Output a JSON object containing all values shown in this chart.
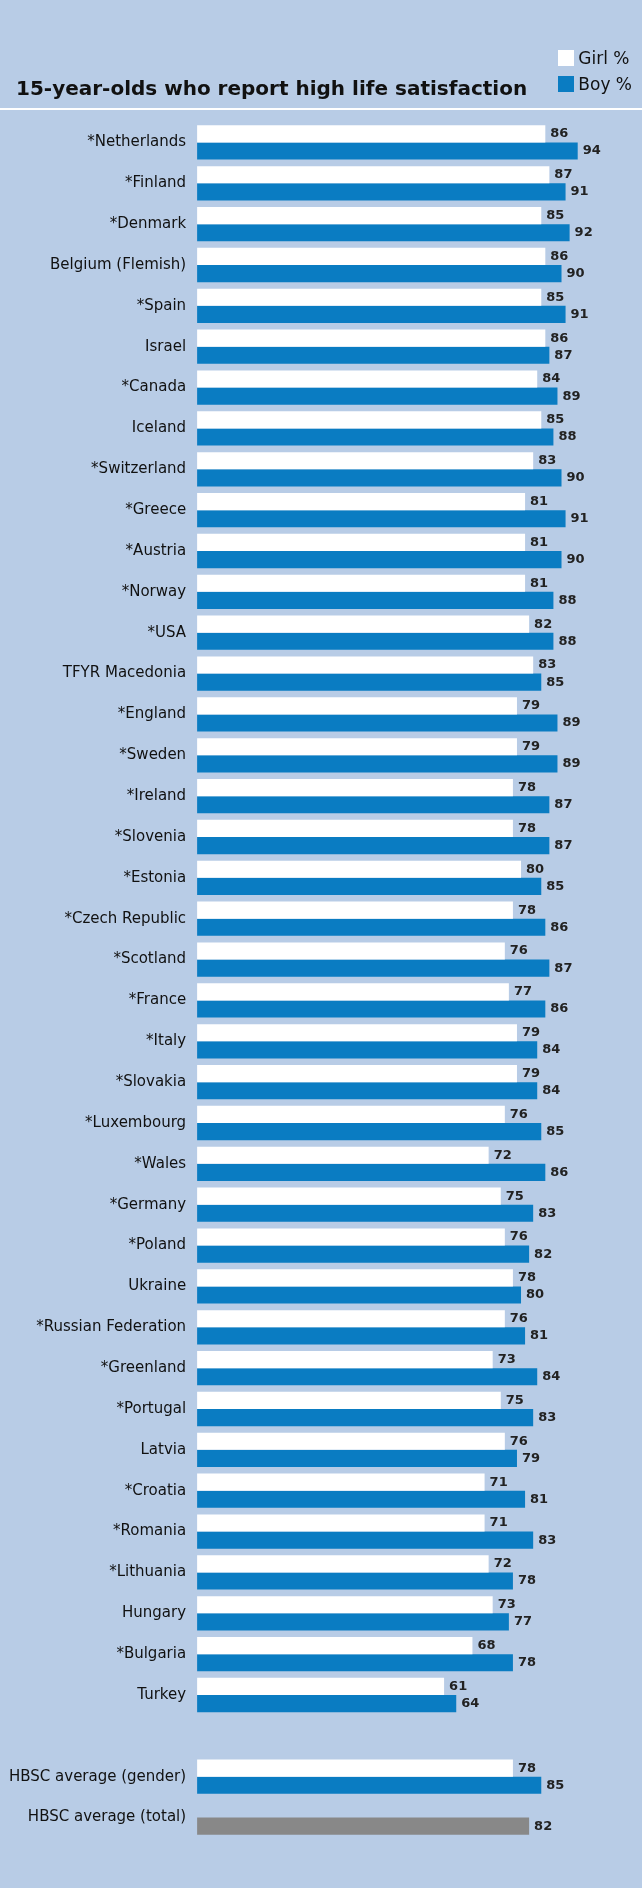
{
  "chart_data": {
    "type": "bar",
    "orientation": "horizontal",
    "title": "15-year-olds who report high life satisfaction",
    "legend": "top right",
    "data_labels": true,
    "categories": [
      "*Netherlands",
      "*Finland",
      "*Denmark",
      "Belgium (Flemish)",
      "*Spain",
      "Israel",
      "*Canada",
      "Iceland",
      "*Switzerland",
      "*Greece",
      "*Austria",
      "*Norway",
      "*USA",
      "TFYR Macedonia",
      "*England",
      "*Sweden",
      "*Ireland",
      "*Slovenia",
      "*Estonia",
      "*Czech Republic",
      "*Scotland",
      "*France",
      "*Italy",
      "*Slovakia",
      "*Luxembourg",
      "*Wales",
      "*Germany",
      "*Poland",
      "Ukraine",
      "*Russian Federation",
      "*Greenland",
      "*Portugal",
      "Latvia",
      "*Croatia",
      "*Romania",
      "*Lithuania",
      "Hungary",
      "*Bulgaria",
      "Turkey",
      null,
      "HBSC average (gender)",
      "HBSC average (total)"
    ],
    "series": [
      {
        "name": "Girl %",
        "color": "#ffffff",
        "values": [
          86,
          87,
          85,
          86,
          85,
          86,
          84,
          85,
          83,
          81,
          81,
          81,
          82,
          83,
          79,
          79,
          78,
          78,
          80,
          78,
          76,
          77,
          79,
          79,
          76,
          72,
          75,
          76,
          78,
          76,
          73,
          75,
          76,
          71,
          71,
          72,
          73,
          68,
          61,
          null,
          78,
          null
        ]
      },
      {
        "name": "Boy %",
        "color": "#0a7cc2",
        "colors": [
          "#0a7cc2",
          "#0a7cc2",
          "#0a7cc2",
          "#0a7cc2",
          "#0a7cc2",
          "#0a7cc2",
          "#0a7cc2",
          "#0a7cc2",
          "#0a7cc2",
          "#0a7cc2",
          "#0a7cc2",
          "#0a7cc2",
          "#0a7cc2",
          "#0a7cc2",
          "#0a7cc2",
          "#0a7cc2",
          "#0a7cc2",
          "#0a7cc2",
          "#0a7cc2",
          "#0a7cc2",
          "#0a7cc2",
          "#0a7cc2",
          "#0a7cc2",
          "#0a7cc2",
          "#0a7cc2",
          "#0a7cc2",
          "#0a7cc2",
          "#0a7cc2",
          "#0a7cc2",
          "#0a7cc2",
          "#0a7cc2",
          "#0a7cc2",
          "#0a7cc2",
          "#0a7cc2",
          "#0a7cc2",
          "#0a7cc2",
          "#0a7cc2",
          "#0a7cc2",
          "#0a7cc2",
          "#0a7cc2",
          "#0a7cc2",
          "#888888"
        ],
        "values": [
          94,
          91,
          92,
          90,
          91,
          87,
          89,
          88,
          90,
          91,
          90,
          88,
          88,
          85,
          89,
          89,
          87,
          87,
          85,
          86,
          87,
          86,
          84,
          84,
          85,
          86,
          83,
          82,
          80,
          81,
          84,
          83,
          79,
          81,
          83,
          78,
          77,
          78,
          64,
          null,
          85,
          82
        ]
      }
    ]
  }
}
